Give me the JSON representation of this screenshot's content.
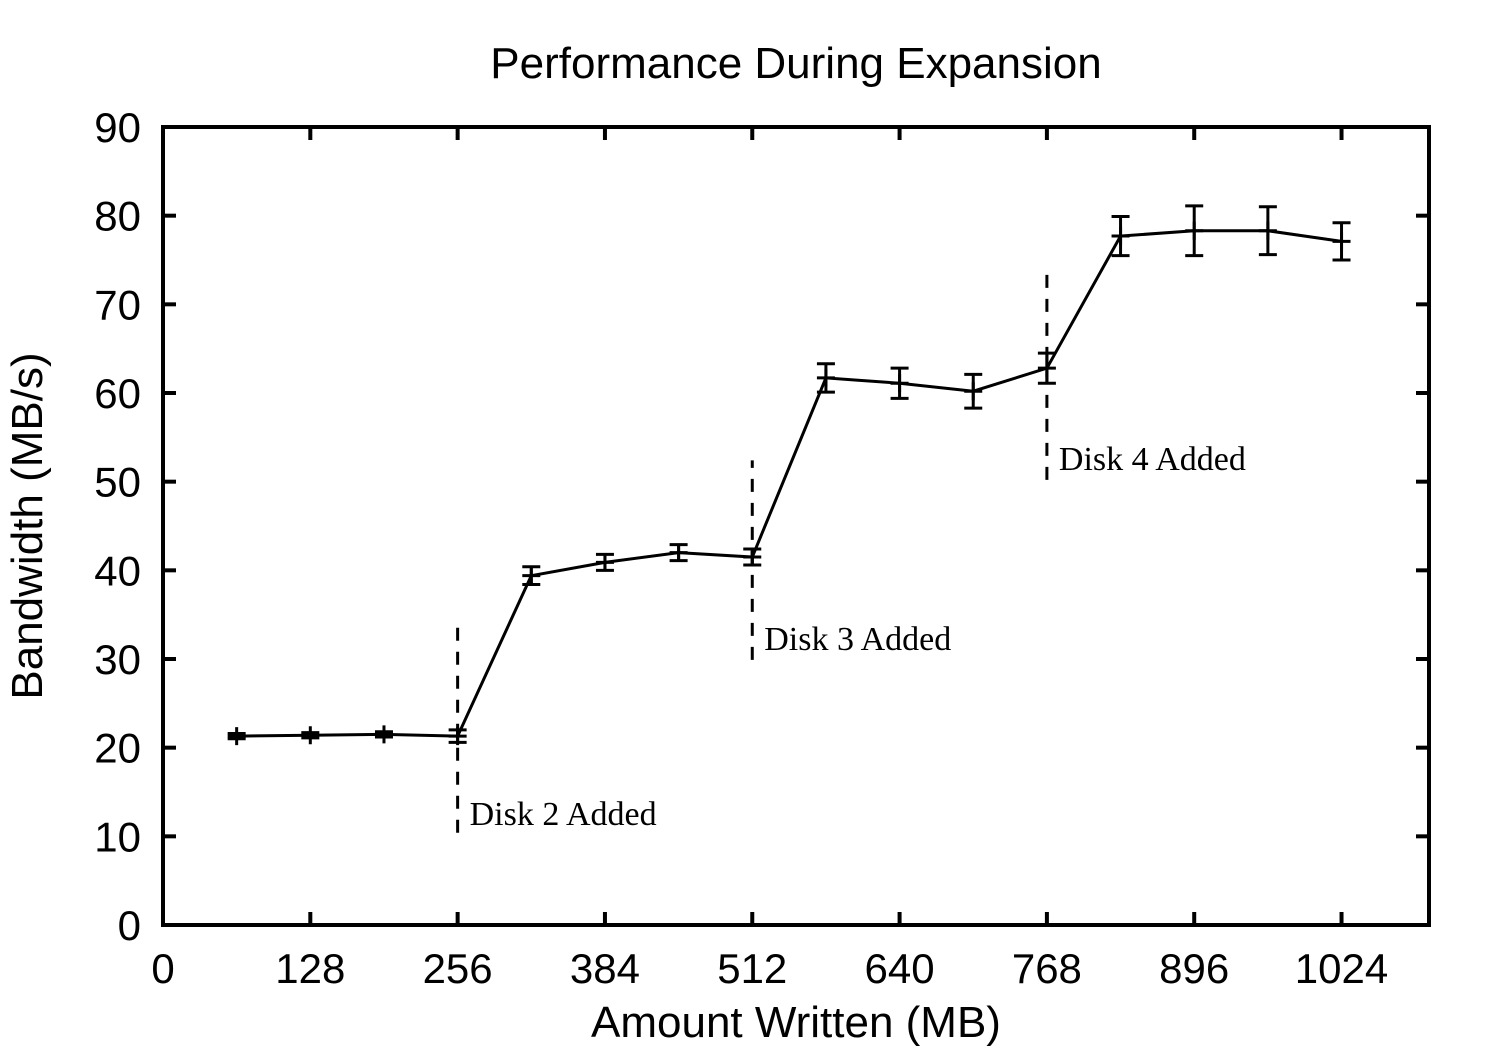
{
  "chart_data": {
    "type": "line",
    "title": "Performance During Expansion",
    "xlabel": "Amount Written (MB)",
    "ylabel": "Bandwidth (MB/s)",
    "xlim": [
      0,
      1100
    ],
    "ylim": [
      0,
      90
    ],
    "xticks": [
      0,
      128,
      256,
      384,
      512,
      640,
      768,
      896,
      1024
    ],
    "yticks": [
      0,
      10,
      20,
      30,
      40,
      50,
      60,
      70,
      80,
      90
    ],
    "grid": false,
    "legend_position": "none",
    "colors": {
      "line": "#000000",
      "background": "#ffffff",
      "text": "#000000"
    },
    "series": [
      {
        "name": "bandwidth",
        "marker": "plus-with-errorbars",
        "x": [
          64,
          128,
          192,
          256,
          320,
          384,
          448,
          512,
          576,
          640,
          704,
          768,
          832,
          896,
          960,
          1024
        ],
        "y": [
          21.3,
          21.4,
          21.5,
          21.3,
          39.4,
          40.9,
          42.0,
          41.5,
          61.7,
          61.1,
          60.2,
          62.8,
          77.7,
          78.3,
          78.3,
          77.1
        ],
        "yerr": [
          0.3,
          0.3,
          0.3,
          0.7,
          1.0,
          0.9,
          0.9,
          0.9,
          1.6,
          1.7,
          1.9,
          1.7,
          2.2,
          2.8,
          2.7,
          2.1
        ]
      }
    ],
    "annotations": [
      {
        "label": "Disk 2 Added",
        "line_x": 256,
        "line_y_from": 10.4,
        "line_y_to": 34.1,
        "label_y": 11.3
      },
      {
        "label": "Disk 3 Added",
        "line_x": 512,
        "line_y_from": 29.9,
        "line_y_to": 52.4,
        "label_y": 31.0
      },
      {
        "label": "Disk 4 Added",
        "line_x": 768,
        "line_y_from": 50.2,
        "line_y_to": 74.1,
        "label_y": 51.3
      }
    ]
  }
}
